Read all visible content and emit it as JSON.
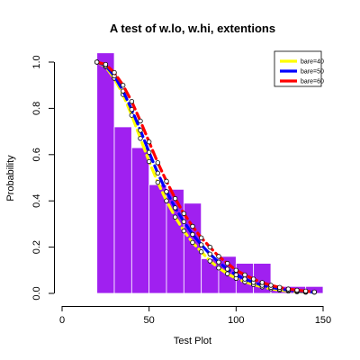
{
  "chart_data": {
    "type": "bar",
    "title": "A test of w.lo, w.hi, extentions",
    "xlabel": "Test Plot",
    "ylabel": "Probability",
    "xlim": [
      0,
      150
    ],
    "ylim": [
      0,
      1.0
    ],
    "x_ticks": [
      "0",
      "50",
      "100",
      "150"
    ],
    "y_ticks": [
      "0.0",
      "0.2",
      "0.4",
      "0.6",
      "0.8",
      "1.0"
    ],
    "grid": false,
    "legend_position": "top-right",
    "histogram": {
      "color": "#a020f0",
      "bins": [
        {
          "x0": 20,
          "x1": 30,
          "height": 1.04
        },
        {
          "x0": 30,
          "x1": 40,
          "height": 0.72
        },
        {
          "x0": 40,
          "x1": 50,
          "height": 0.63
        },
        {
          "x0": 50,
          "x1": 60,
          "height": 0.47
        },
        {
          "x0": 60,
          "x1": 70,
          "height": 0.45
        },
        {
          "x0": 70,
          "x1": 80,
          "height": 0.39
        },
        {
          "x0": 80,
          "x1": 90,
          "height": 0.15
        },
        {
          "x0": 90,
          "x1": 100,
          "height": 0.16
        },
        {
          "x0": 100,
          "x1": 110,
          "height": 0.13
        },
        {
          "x0": 110,
          "x1": 120,
          "height": 0.13
        },
        {
          "x0": 120,
          "x1": 130,
          "height": 0.03
        },
        {
          "x0": 130,
          "x1": 140,
          "height": 0.03
        },
        {
          "x0": 140,
          "x1": 150,
          "height": 0.03
        }
      ]
    },
    "series": [
      {
        "name": "bare=40",
        "color": "#ffff00",
        "x": [
          20,
          25,
          30,
          35,
          40,
          45,
          50,
          55,
          60,
          65,
          70,
          75,
          80,
          85,
          90,
          95,
          100,
          105,
          110,
          115,
          120,
          125,
          130,
          135,
          140
        ],
        "y": [
          1.0,
          0.98,
          0.93,
          0.86,
          0.77,
          0.67,
          0.57,
          0.48,
          0.4,
          0.33,
          0.27,
          0.22,
          0.18,
          0.14,
          0.11,
          0.085,
          0.065,
          0.05,
          0.038,
          0.028,
          0.02,
          0.014,
          0.01,
          0.007,
          0.005
        ]
      },
      {
        "name": "bare=50",
        "color": "#0000ff",
        "x": [
          20,
          25,
          30,
          35,
          40,
          45,
          50,
          55,
          60,
          65,
          70,
          75,
          80,
          85,
          90,
          95,
          100,
          105,
          110,
          115,
          120,
          125,
          130,
          135,
          140,
          145
        ],
        "y": [
          1.0,
          0.985,
          0.94,
          0.875,
          0.795,
          0.705,
          0.61,
          0.52,
          0.44,
          0.37,
          0.31,
          0.255,
          0.21,
          0.17,
          0.135,
          0.105,
          0.08,
          0.062,
          0.047,
          0.035,
          0.026,
          0.019,
          0.014,
          0.01,
          0.007,
          0.005
        ]
      },
      {
        "name": "bare=60",
        "color": "#ff0000",
        "x": [
          20,
          25,
          30,
          35,
          40,
          45,
          50,
          55,
          60,
          65,
          70,
          75,
          80,
          85,
          90,
          95,
          100,
          105,
          110,
          115,
          120,
          125,
          130,
          135,
          140,
          145
        ],
        "y": [
          1.0,
          0.99,
          0.955,
          0.9,
          0.83,
          0.745,
          0.655,
          0.565,
          0.485,
          0.41,
          0.345,
          0.29,
          0.24,
          0.2,
          0.16,
          0.13,
          0.1,
          0.08,
          0.062,
          0.047,
          0.035,
          0.026,
          0.019,
          0.014,
          0.01,
          0.006
        ]
      }
    ]
  }
}
